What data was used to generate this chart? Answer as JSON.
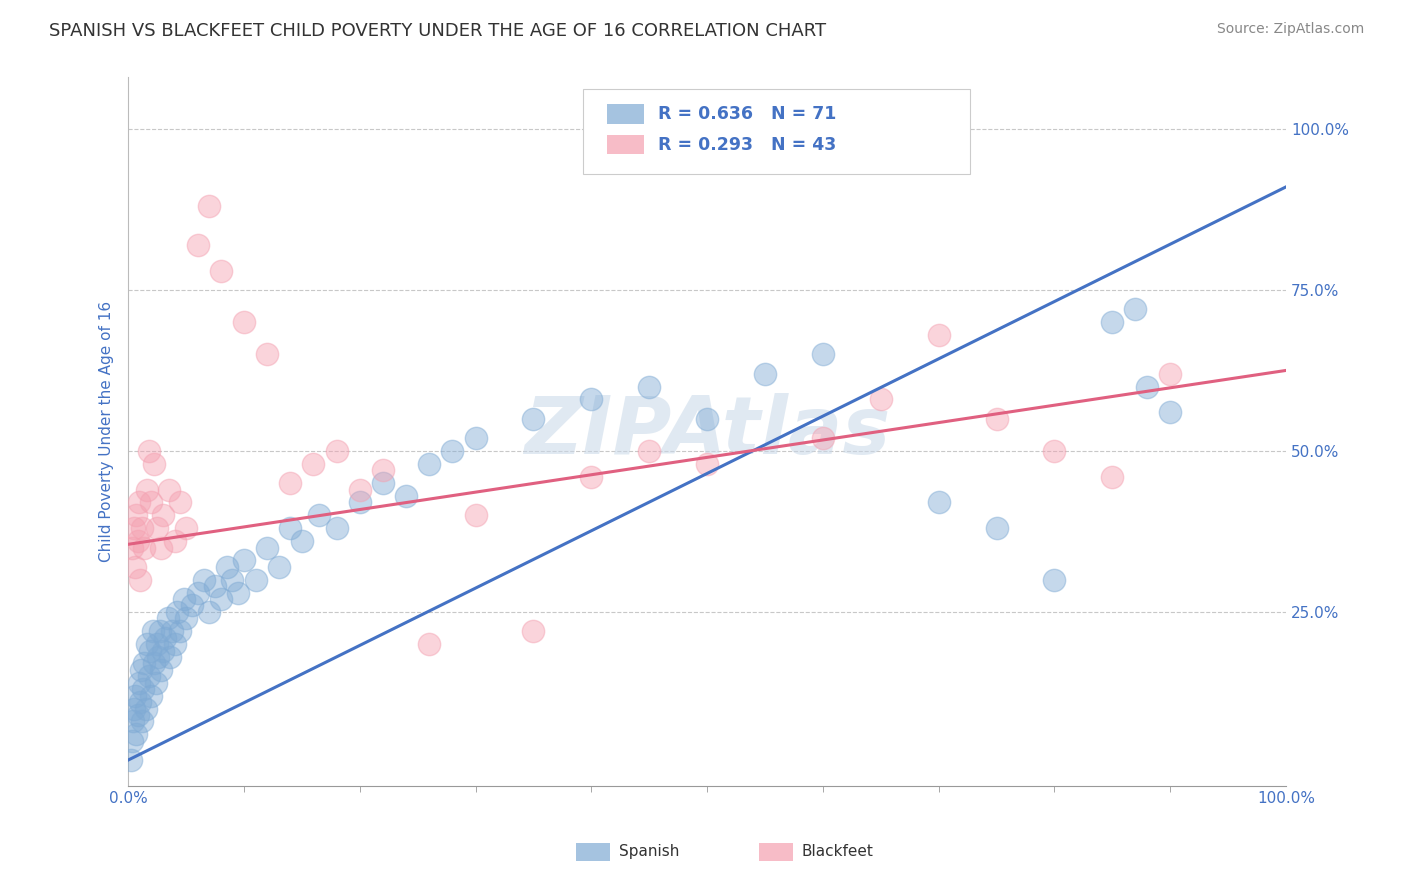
{
  "title": "SPANISH VS BLACKFEET CHILD POVERTY UNDER THE AGE OF 16 CORRELATION CHART",
  "source": "Source: ZipAtlas.com",
  "ylabel": "Child Poverty Under the Age of 16",
  "xlim": [
    0,
    1
  ],
  "ylim": [
    -0.02,
    1.08
  ],
  "xtick_labels": [
    "0.0%",
    "100.0%"
  ],
  "ytick_labels": [
    "25.0%",
    "50.0%",
    "75.0%",
    "100.0%"
  ],
  "ytick_positions": [
    0.25,
    0.5,
    0.75,
    1.0
  ],
  "grid_color": "#c8c8c8",
  "background_color": "#ffffff",
  "watermark": "ZIPAtlas",
  "watermark_color": "#c8d8e8",
  "legend_r1": "R = 0.636",
  "legend_n1": "N = 71",
  "legend_r2": "R = 0.293",
  "legend_n2": "N = 43",
  "legend_color": "#4472c4",
  "spanish_color": "#7faad4",
  "blackfeet_color": "#f4a0b0",
  "spanish_line_color": "#4472c4",
  "blackfeet_line_color": "#e06080",
  "title_color": "#333333",
  "axis_label_color": "#4472c4",
  "spanish_line_x0": 0.0,
  "spanish_line_y0": 0.02,
  "spanish_line_x1": 1.0,
  "spanish_line_y1": 0.91,
  "blackfeet_line_x0": 0.0,
  "blackfeet_line_y0": 0.355,
  "blackfeet_line_x1": 1.0,
  "blackfeet_line_y1": 0.625,
  "spanish_scatter_x": [
    0.002,
    0.003,
    0.004,
    0.005,
    0.006,
    0.007,
    0.008,
    0.009,
    0.01,
    0.011,
    0.012,
    0.013,
    0.014,
    0.015,
    0.016,
    0.018,
    0.019,
    0.02,
    0.021,
    0.022,
    0.024,
    0.025,
    0.026,
    0.027,
    0.028,
    0.03,
    0.032,
    0.034,
    0.036,
    0.038,
    0.04,
    0.042,
    0.045,
    0.048,
    0.05,
    0.055,
    0.06,
    0.065,
    0.07,
    0.075,
    0.08,
    0.085,
    0.09,
    0.095,
    0.1,
    0.11,
    0.12,
    0.13,
    0.14,
    0.15,
    0.165,
    0.18,
    0.2,
    0.22,
    0.24,
    0.26,
    0.28,
    0.3,
    0.35,
    0.4,
    0.45,
    0.5,
    0.55,
    0.6,
    0.7,
    0.75,
    0.8,
    0.85,
    0.87,
    0.88,
    0.9
  ],
  "spanish_scatter_y": [
    0.02,
    0.05,
    0.08,
    0.1,
    0.12,
    0.06,
    0.09,
    0.14,
    0.11,
    0.16,
    0.08,
    0.13,
    0.17,
    0.1,
    0.2,
    0.15,
    0.19,
    0.12,
    0.22,
    0.17,
    0.14,
    0.2,
    0.18,
    0.22,
    0.16,
    0.19,
    0.21,
    0.24,
    0.18,
    0.22,
    0.2,
    0.25,
    0.22,
    0.27,
    0.24,
    0.26,
    0.28,
    0.3,
    0.25,
    0.29,
    0.27,
    0.32,
    0.3,
    0.28,
    0.33,
    0.3,
    0.35,
    0.32,
    0.38,
    0.36,
    0.4,
    0.38,
    0.42,
    0.45,
    0.43,
    0.48,
    0.5,
    0.52,
    0.55,
    0.58,
    0.6,
    0.55,
    0.62,
    0.65,
    0.42,
    0.38,
    0.3,
    0.7,
    0.72,
    0.6,
    0.56
  ],
  "blackfeet_scatter_x": [
    0.003,
    0.005,
    0.006,
    0.007,
    0.008,
    0.009,
    0.01,
    0.012,
    0.014,
    0.016,
    0.018,
    0.02,
    0.022,
    0.025,
    0.028,
    0.03,
    0.035,
    0.04,
    0.045,
    0.05,
    0.06,
    0.07,
    0.08,
    0.1,
    0.12,
    0.14,
    0.16,
    0.18,
    0.2,
    0.22,
    0.26,
    0.3,
    0.35,
    0.4,
    0.45,
    0.5,
    0.6,
    0.65,
    0.7,
    0.75,
    0.8,
    0.85,
    0.9
  ],
  "blackfeet_scatter_y": [
    0.35,
    0.38,
    0.32,
    0.4,
    0.36,
    0.42,
    0.3,
    0.38,
    0.35,
    0.44,
    0.5,
    0.42,
    0.48,
    0.38,
    0.35,
    0.4,
    0.44,
    0.36,
    0.42,
    0.38,
    0.82,
    0.88,
    0.78,
    0.7,
    0.65,
    0.45,
    0.48,
    0.5,
    0.44,
    0.47,
    0.2,
    0.4,
    0.22,
    0.46,
    0.5,
    0.48,
    0.52,
    0.58,
    0.68,
    0.55,
    0.5,
    0.46,
    0.62
  ]
}
